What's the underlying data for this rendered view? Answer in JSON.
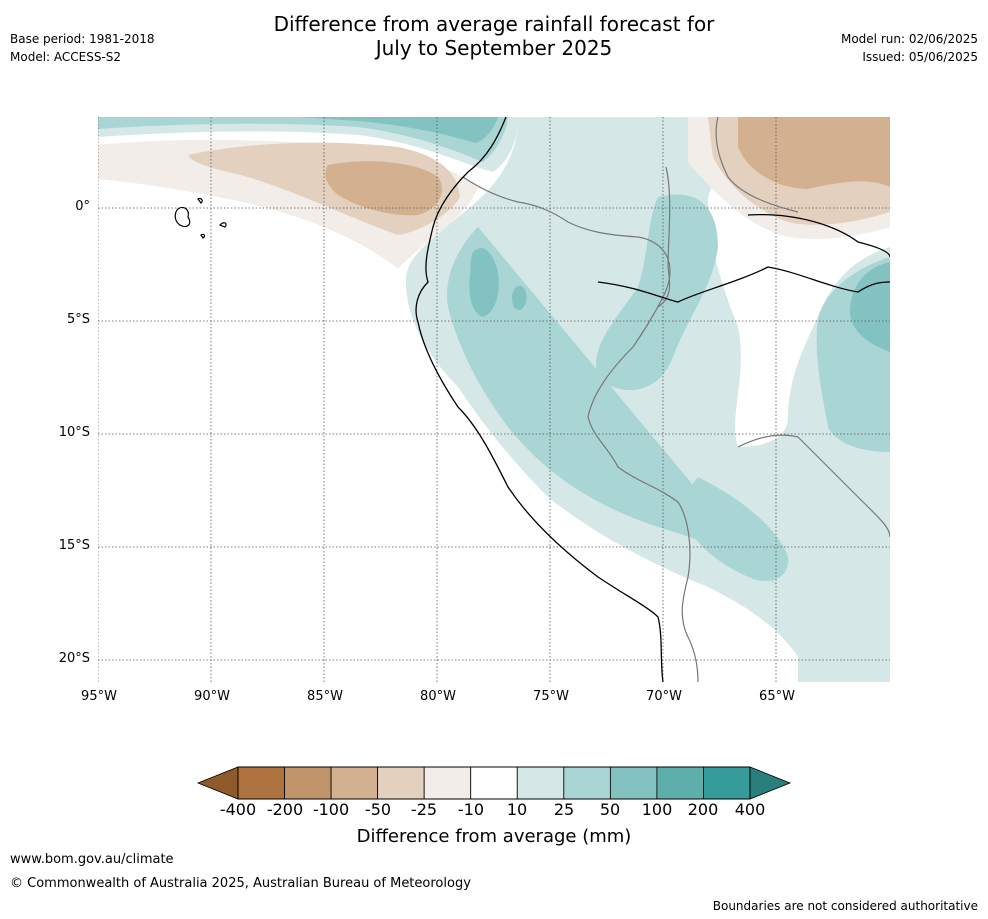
{
  "header": {
    "title_line1": "Difference from average rainfall forecast for",
    "title_line2": "July to September 2025",
    "base_period": "Base period: 1981-2018",
    "model": "Model: ACCESS-S2",
    "model_run": "Model run: 02/06/2025",
    "issued": "Issued: 05/06/2025"
  },
  "map": {
    "lat_labels": [
      "0°",
      "5°S",
      "10°S",
      "15°S",
      "20°S"
    ],
    "lon_labels": [
      "95°W",
      "90°W",
      "85°W",
      "80°W",
      "75°W",
      "70°W",
      "65°W"
    ]
  },
  "colorbar": {
    "title": "Difference from average (mm)",
    "labels": [
      "-400",
      "-200",
      "-100",
      "-50",
      "-25",
      "-10",
      "10",
      "25",
      "50",
      "100",
      "200",
      "400"
    ],
    "colors": [
      "#8e5a2a",
      "#ae733f",
      "#c29469",
      "#d3b08f",
      "#e3d0bf",
      "#f2ede8",
      "#ffffff",
      "#d5e8e7",
      "#a9d5d4",
      "#82c2c0",
      "#5eaeac",
      "#359c99",
      "#2a7f7c"
    ]
  },
  "footer": {
    "url": "www.bom.gov.au/climate",
    "copyright": "© Commonwealth of Australia 2025, Australian Bureau of Meteorology",
    "disclaimer": "Boundaries are not considered authoritative"
  }
}
